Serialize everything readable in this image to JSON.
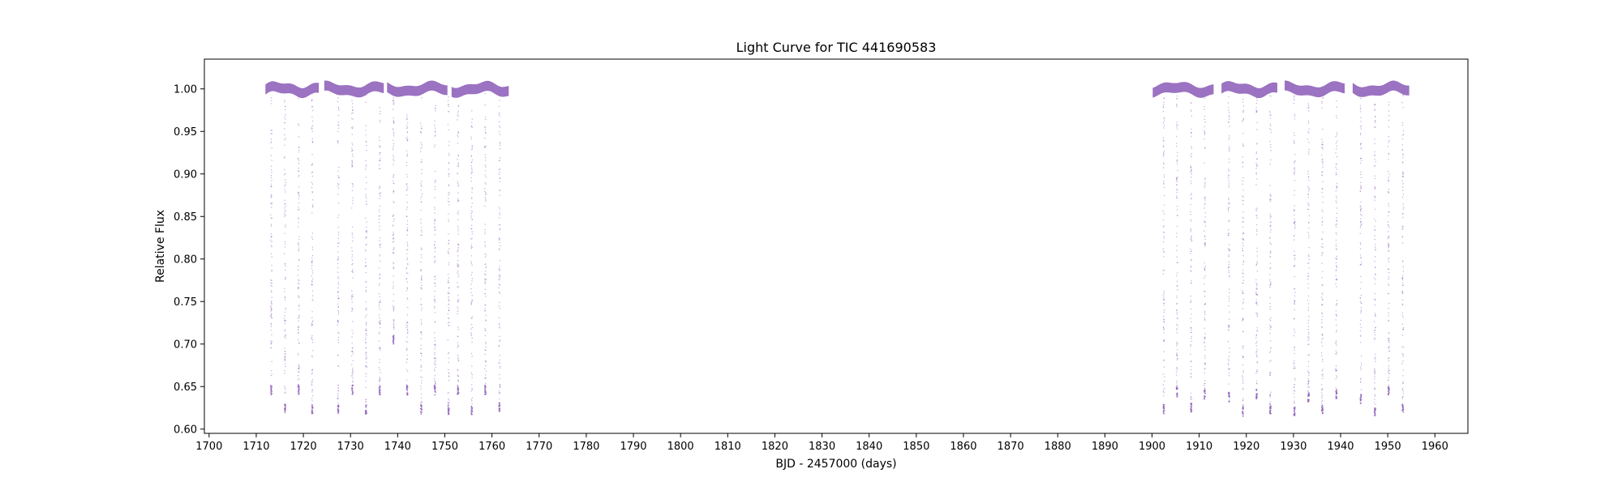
{
  "chart_data": {
    "type": "scatter",
    "title": "Light Curve for TIC 441690583",
    "xlabel": "BJD - 2457000 (days)",
    "ylabel": "Relative Flux",
    "xlim": [
      1699,
      1967
    ],
    "ylim": [
      0.595,
      1.035
    ],
    "x_ticks": [
      1700,
      1710,
      1720,
      1730,
      1740,
      1750,
      1760,
      1770,
      1780,
      1790,
      1800,
      1810,
      1820,
      1830,
      1840,
      1850,
      1860,
      1870,
      1880,
      1890,
      1900,
      1910,
      1920,
      1930,
      1940,
      1950,
      1960
    ],
    "y_ticks": [
      "0.60",
      "0.65",
      "0.70",
      "0.75",
      "0.80",
      "0.85",
      "0.90",
      "0.95",
      "1.00"
    ],
    "grid": false,
    "point_color": "#9467bd",
    "baseline_flux": 1.0,
    "baseline_segments": [
      [
        1712.0,
        1723.2
      ],
      [
        1724.5,
        1737.0
      ],
      [
        1737.8,
        1750.5
      ],
      [
        1751.5,
        1763.5
      ],
      [
        1900.2,
        1913.0
      ],
      [
        1914.8,
        1926.5
      ],
      [
        1928.2,
        1940.8
      ],
      [
        1942.6,
        1954.5
      ]
    ],
    "eclipses": [
      {
        "time": 1713.2,
        "min_flux": 0.64
      },
      {
        "time": 1716.1,
        "min_flux": 0.618
      },
      {
        "time": 1719.0,
        "min_flux": 0.64
      },
      {
        "time": 1721.9,
        "min_flux": 0.618
      },
      {
        "time": 1727.4,
        "min_flux": 0.617
      },
      {
        "time": 1730.4,
        "min_flux": 0.64
      },
      {
        "time": 1733.3,
        "min_flux": 0.617
      },
      {
        "time": 1736.2,
        "min_flux": 0.64
      },
      {
        "time": 1739.1,
        "min_flux": 0.7
      },
      {
        "time": 1742.0,
        "min_flux": 0.64
      },
      {
        "time": 1745.0,
        "min_flux": 0.617
      },
      {
        "time": 1747.9,
        "min_flux": 0.64
      },
      {
        "time": 1750.8,
        "min_flux": 0.617
      },
      {
        "time": 1752.8,
        "min_flux": 0.64
      },
      {
        "time": 1755.7,
        "min_flux": 0.617
      },
      {
        "time": 1758.6,
        "min_flux": 0.64
      },
      {
        "time": 1761.6,
        "min_flux": 0.62
      },
      {
        "time": 1902.5,
        "min_flux": 0.618
      },
      {
        "time": 1905.3,
        "min_flux": 0.638
      },
      {
        "time": 1908.3,
        "min_flux": 0.62
      },
      {
        "time": 1911.2,
        "min_flux": 0.635
      },
      {
        "time": 1916.3,
        "min_flux": 0.632
      },
      {
        "time": 1919.3,
        "min_flux": 0.615
      },
      {
        "time": 1922.2,
        "min_flux": 0.635
      },
      {
        "time": 1925.1,
        "min_flux": 0.618
      },
      {
        "time": 1930.2,
        "min_flux": 0.615
      },
      {
        "time": 1933.2,
        "min_flux": 0.632
      },
      {
        "time": 1936.1,
        "min_flux": 0.618
      },
      {
        "time": 1939.1,
        "min_flux": 0.635
      },
      {
        "time": 1944.3,
        "min_flux": 0.63
      },
      {
        "time": 1947.3,
        "min_flux": 0.615
      },
      {
        "time": 1950.2,
        "min_flux": 0.638
      },
      {
        "time": 1953.2,
        "min_flux": 0.618
      }
    ]
  }
}
